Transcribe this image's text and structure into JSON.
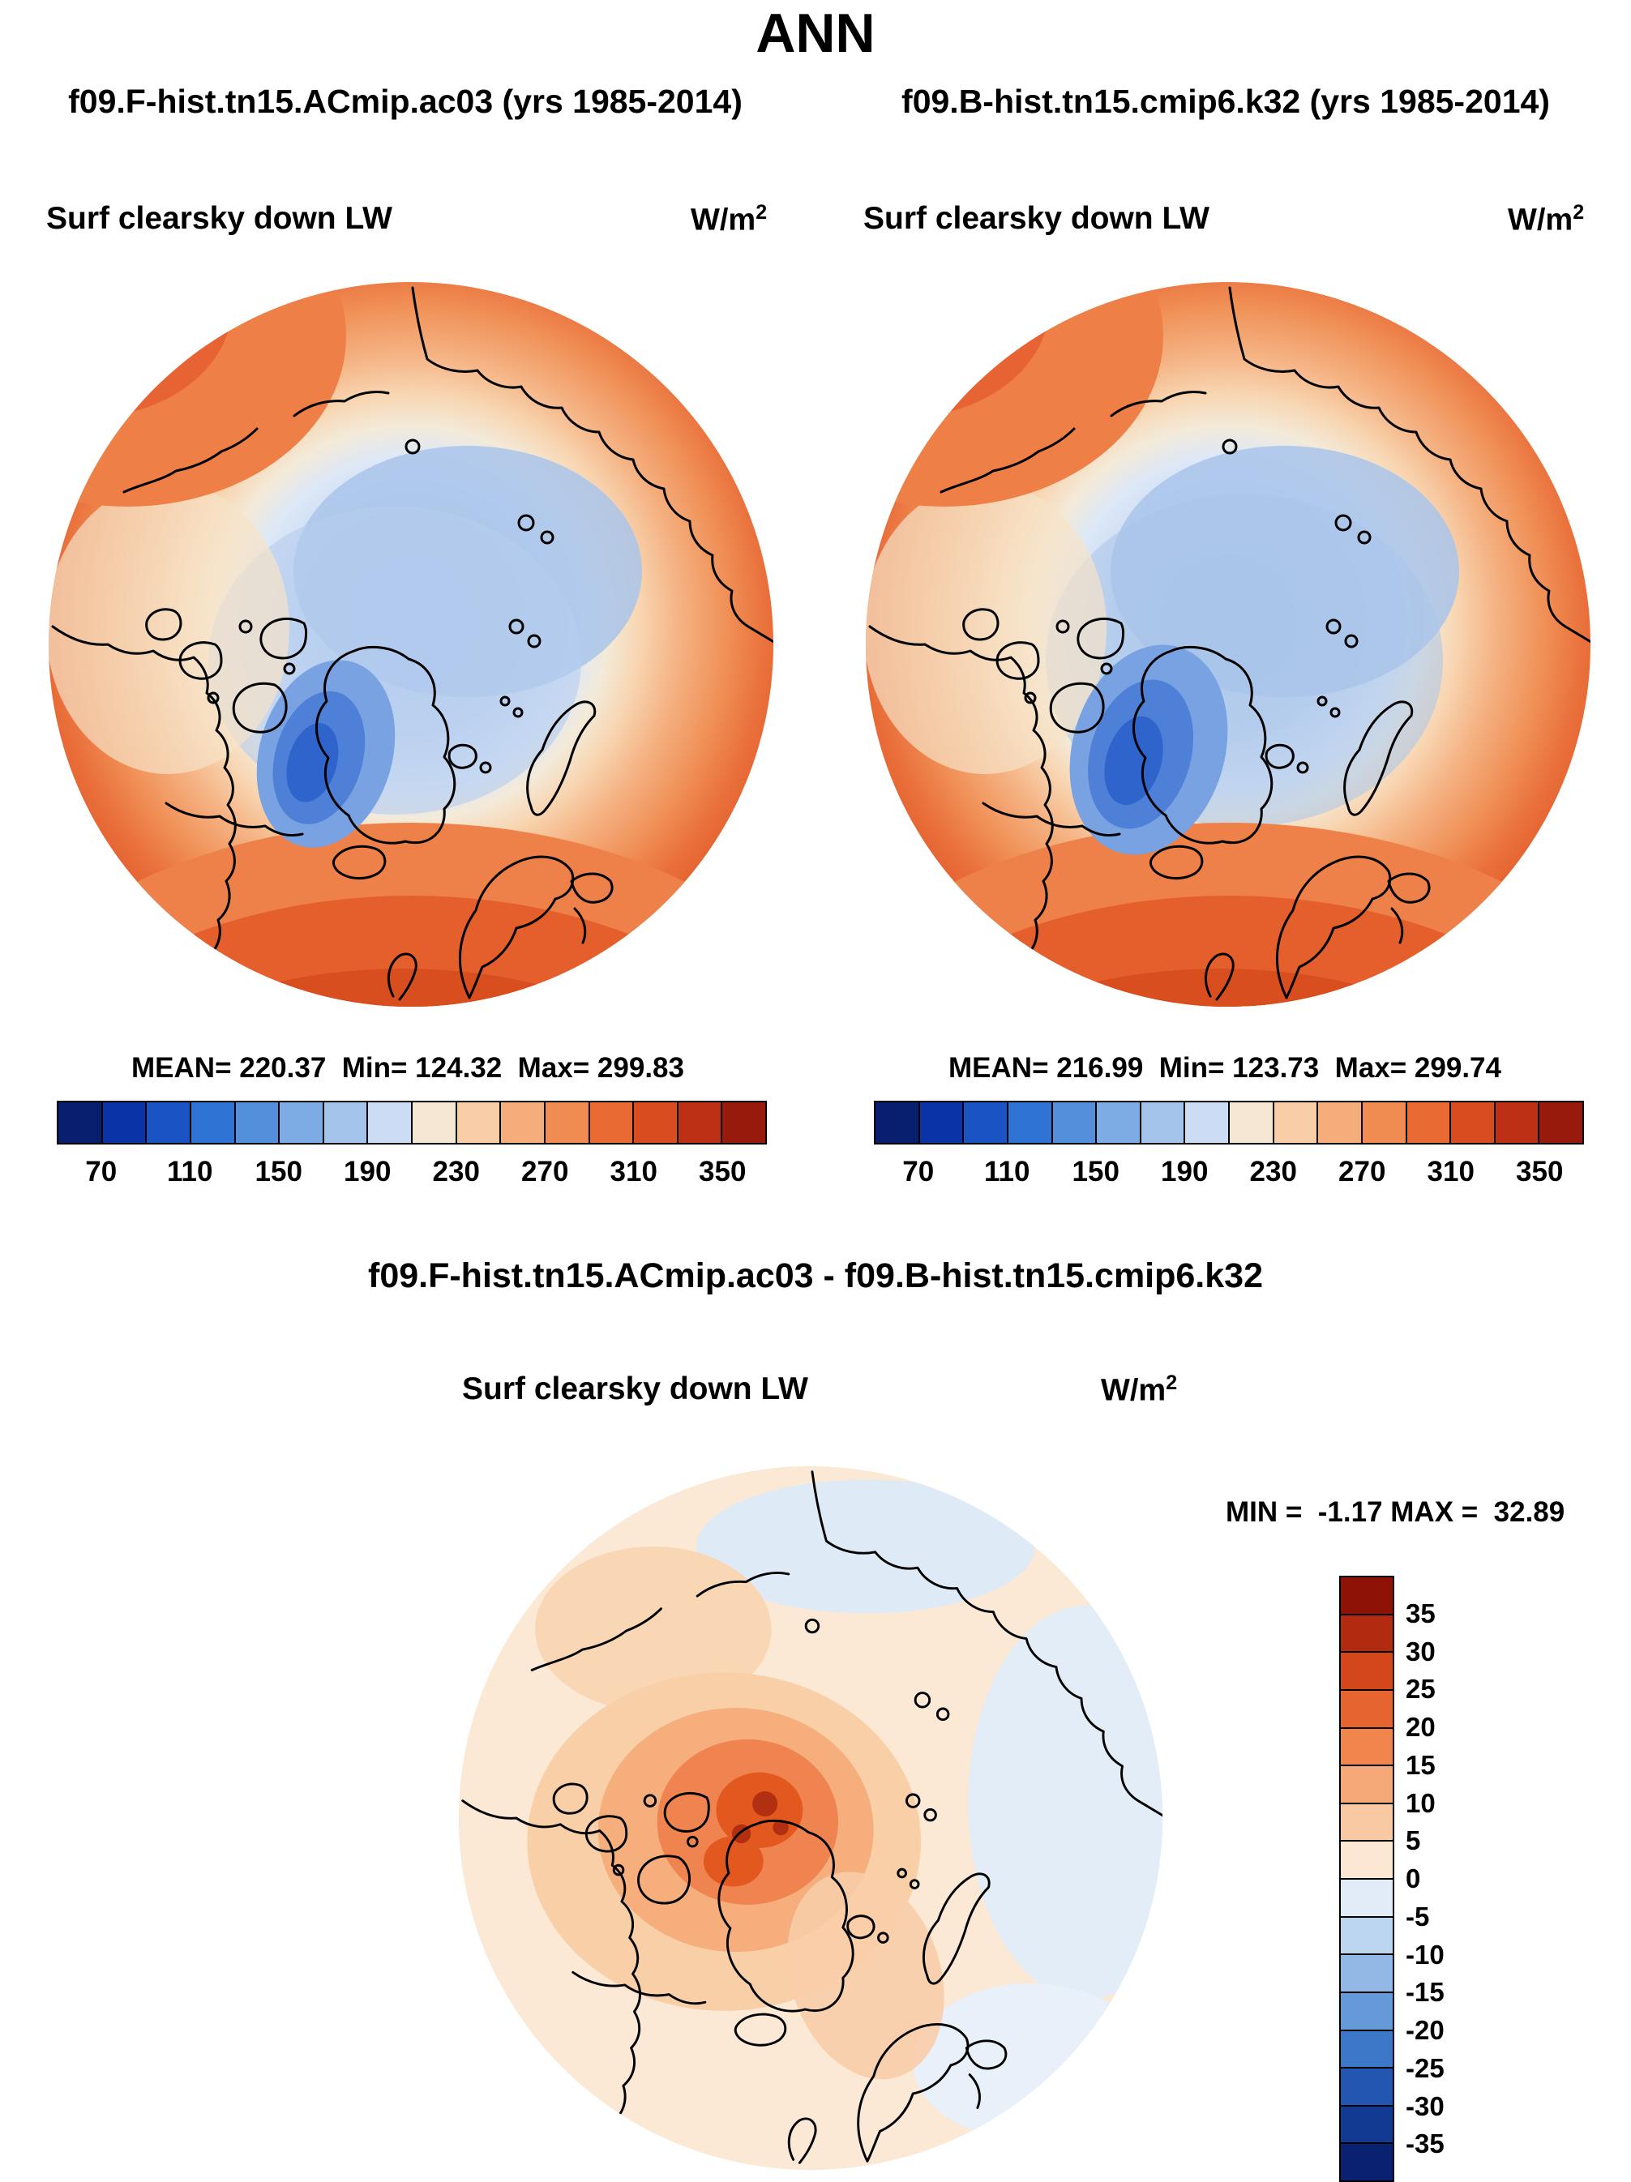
{
  "title": "ANN",
  "panels": [
    {
      "run_title": "f09.F-hist.tn15.ACmip.ac03 (yrs 1985-2014)",
      "field_label": "Surf clearsky down LW",
      "units_base": "W/m",
      "units_exp": "2",
      "stats_text": "MEAN= 220.37  Min= 124.32  Max= 299.83"
    },
    {
      "run_title": "f09.B-hist.tn15.cmip6.k32 (yrs 1985-2014)",
      "field_label": "Surf clearsky down LW",
      "units_base": "W/m",
      "units_exp": "2",
      "stats_text": "MEAN= 216.99  Min= 123.73  Max= 299.74"
    }
  ],
  "main_colorbar": {
    "ticks": [
      "70",
      "110",
      "150",
      "190",
      "230",
      "270",
      "310",
      "350"
    ],
    "colors": [
      "#081f70",
      "#0b33a8",
      "#1a53c4",
      "#2f74d4",
      "#548fdc",
      "#7dabe4",
      "#a4c4ec",
      "#cbdcf4",
      "#f6e6d4",
      "#f8cda8",
      "#f5ad7c",
      "#f08c52",
      "#e96a33",
      "#d84c20",
      "#bd3015",
      "#971a0c"
    ]
  },
  "diff": {
    "title": "f09.F-hist.tn15.ACmip.ac03 - f09.B-hist.tn15.cmip6.k32",
    "field_label": "Surf clearsky down LW",
    "units_base": "W/m",
    "units_exp": "2",
    "minmax_text": "MIN =  -1.17 MAX =  32.89",
    "colorbar": {
      "ticks": [
        "35",
        "30",
        "25",
        "20",
        "15",
        "10",
        "5",
        "0",
        "-5",
        "-10",
        "-15",
        "-20",
        "-25",
        "-30",
        "-35"
      ],
      "colors": [
        "#8f1207",
        "#b22a10",
        "#d4461c",
        "#e6642f",
        "#f0854d",
        "#f5a878",
        "#f9c9a4",
        "#fce7d2",
        "#e1ecf8",
        "#bcd5f0",
        "#92b9e6",
        "#649ad8",
        "#3c77c8",
        "#2356b0",
        "#123a92",
        "#0a2070"
      ]
    }
  },
  "chart_data": {
    "type": "heatmap",
    "subtype": "north-polar-stereographic-map",
    "season": "ANN",
    "variable": "Surf clearsky down LW",
    "units": "W/m^2",
    "panels": [
      {
        "name": "f09.F-hist.tn15.ACmip.ac03",
        "years": "1985-2014",
        "mean": 220.37,
        "min": 124.32,
        "max": 299.83,
        "colorbar": {
          "orientation": "horizontal",
          "ticks": [
            70,
            110,
            150,
            190,
            230,
            270,
            310,
            350
          ],
          "interval": 20,
          "range": [
            50,
            370
          ]
        },
        "pattern": "low values (blue) over central Arctic Ocean with minimum over Baffin Bay/west Greenland; values increase toward map edge with maximum (dark orange-red) over North Atlantic and Europe"
      },
      {
        "name": "f09.B-hist.tn15.cmip6.k32",
        "years": "1985-2014",
        "mean": 216.99,
        "min": 123.73,
        "max": 299.74,
        "colorbar": {
          "orientation": "horizontal",
          "ticks": [
            70,
            110,
            150,
            190,
            230,
            270,
            310,
            350
          ],
          "interval": 20,
          "range": [
            50,
            370
          ]
        },
        "pattern": "same spatial structure as first panel with slightly deeper/larger blue minimum over the Canadian Arctic and Baffin Bay"
      },
      {
        "name": "f09.F-hist.tn15.ACmip.ac03 - f09.B-hist.tn15.cmip6.k32",
        "kind": "difference",
        "min": -1.17,
        "max": 32.89,
        "colorbar": {
          "orientation": "vertical",
          "ticks": [
            35,
            30,
            25,
            20,
            15,
            10,
            5,
            0,
            -5,
            -10,
            -15,
            -20,
            -25,
            -30,
            -35
          ],
          "interval": 5,
          "range": [
            -40,
            40
          ]
        },
        "pattern": "near-zero (pale cream) over most of the domain, weak negative (pale blue) patches over parts of the ocean, strong positive differences up to ~33 W/m^2 concentrated over the Canadian Arctic Archipelago and northwest Greenland"
      }
    ]
  }
}
